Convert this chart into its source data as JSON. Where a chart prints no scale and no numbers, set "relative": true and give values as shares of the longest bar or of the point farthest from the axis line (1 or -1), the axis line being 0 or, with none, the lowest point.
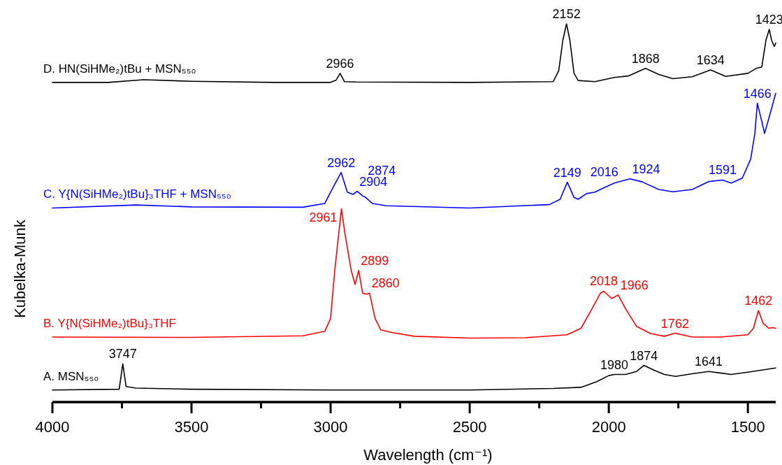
{
  "chart_data": {
    "type": "line",
    "relative": true,
    "ylabel": "Kubelka-Munk",
    "xlabel": "Wavelength (cm⁻¹)",
    "xlim": [
      4000,
      1400
    ],
    "xticks": [
      4000,
      {
        "value": 3750,
        "label": null
      },
      3500,
      {
        "value": 3250,
        "label": null
      },
      3000,
      {
        "value": 2750,
        "label": null
      },
      2500,
      {
        "value": 2250,
        "label": null
      },
      2000,
      {
        "value": 1750,
        "label": null
      },
      1500
    ],
    "tick_labels": "x",
    "grid": false,
    "marker": "none",
    "line_style": "solid",
    "series": [
      {
        "name": "A. MSN₅₅₀",
        "color": "#000000",
        "x": [
          4000,
          3760,
          3747,
          3735,
          3700,
          3500,
          3000,
          2500,
          2200,
          2100,
          2043,
          2000,
          1980,
          1940,
          1900,
          1874,
          1837,
          1800,
          1760,
          1700,
          1641,
          1600,
          1560,
          1500,
          1400
        ],
        "values": [
          0.032,
          0.034,
          0.101,
          0.041,
          0.037,
          0.034,
          0.032,
          0.032,
          0.036,
          0.039,
          0.054,
          0.07,
          0.073,
          0.073,
          0.081,
          0.097,
          0.084,
          0.073,
          0.068,
          0.075,
          0.081,
          0.077,
          0.073,
          0.079,
          0.09
        ]
      },
      {
        "name": "B. Y{N(SiHMe₂)tBu}₃THF",
        "color": "#ff0000",
        "x": [
          4000,
          3500,
          3100,
          3021,
          3000,
          2985,
          2961,
          2949,
          2926,
          2912,
          2899,
          2885,
          2870,
          2860,
          2840,
          2820,
          2780,
          2700,
          2500,
          2300,
          2150,
          2100,
          2060,
          2030,
          2018,
          1990,
          1966,
          1940,
          1900,
          1850,
          1800,
          1762,
          1700,
          1600,
          1500,
          1480,
          1462,
          1445,
          1425,
          1410,
          1400
        ],
        "values": [
          0.172,
          0.171,
          0.175,
          0.187,
          0.221,
          0.348,
          0.511,
          0.448,
          0.348,
          0.311,
          0.348,
          0.288,
          0.285,
          0.288,
          0.221,
          0.191,
          0.184,
          0.174,
          0.169,
          0.17,
          0.178,
          0.195,
          0.247,
          0.288,
          0.293,
          0.274,
          0.283,
          0.247,
          0.2,
          0.181,
          0.174,
          0.182,
          0.172,
          0.172,
          0.178,
          0.195,
          0.242,
          0.208,
          0.195,
          0.197,
          0.195
        ]
      },
      {
        "name": "C. Y{N(SiHMe₂)tBu}₃THF + MSN₅₅₀",
        "color": "#0000ff",
        "x": [
          4000,
          3700,
          3500,
          3100,
          3021,
          2990,
          2962,
          2940,
          2920,
          2904,
          2885,
          2874,
          2850,
          2800,
          2500,
          2214,
          2175,
          2149,
          2125,
          2110,
          2080,
          2050,
          2016,
          1980,
          1924,
          1880,
          1820,
          1770,
          1700,
          1640,
          1591,
          1560,
          1520,
          1490,
          1475,
          1466,
          1450,
          1440,
          1425,
          1400
        ],
        "values": [
          0.513,
          0.521,
          0.516,
          0.515,
          0.525,
          0.569,
          0.607,
          0.555,
          0.549,
          0.557,
          0.545,
          0.541,
          0.525,
          0.519,
          0.513,
          0.522,
          0.536,
          0.581,
          0.541,
          0.536,
          0.551,
          0.555,
          0.567,
          0.579,
          0.59,
          0.582,
          0.562,
          0.556,
          0.562,
          0.583,
          0.587,
          0.579,
          0.592,
          0.642,
          0.709,
          0.79,
          0.742,
          0.71,
          0.749,
          0.816
        ]
      },
      {
        "name": "D. HN(SiHMe₂)tBu + MSN₅₅₀",
        "color": "#000000",
        "x": [
          4000,
          3800,
          3673,
          3500,
          3200,
          3000,
          2980,
          2966,
          2950,
          2910,
          2500,
          2200,
          2180,
          2165,
          2152,
          2140,
          2125,
          2110,
          2050,
          1980,
          1930,
          1868,
          1820,
          1770,
          1700,
          1634,
          1580,
          1500,
          1470,
          1450,
          1435,
          1423,
          1415,
          1405,
          1400
        ],
        "values": [
          0.845,
          0.845,
          0.852,
          0.848,
          0.845,
          0.845,
          0.851,
          0.869,
          0.847,
          0.846,
          0.845,
          0.847,
          0.876,
          0.957,
          1.0,
          0.957,
          0.869,
          0.85,
          0.847,
          0.858,
          0.862,
          0.882,
          0.866,
          0.855,
          0.86,
          0.878,
          0.861,
          0.869,
          0.882,
          0.886,
          0.957,
          0.985,
          0.957,
          0.94,
          0.949
        ]
      }
    ],
    "annotations": [
      {
        "text": "3747",
        "x": 3747,
        "y": 0.101
      },
      {
        "text": "1980",
        "x": 1980,
        "y": 0.073
      },
      {
        "text": "1874",
        "x": 1874,
        "y": 0.097
      },
      {
        "text": "1641",
        "x": 1641,
        "y": 0.081
      },
      {
        "text": "2961",
        "x": 2961,
        "y": 0.511
      },
      {
        "text": "2899",
        "x": 2899,
        "y": 0.348
      },
      {
        "text": "2860",
        "x": 2860,
        "y": 0.288
      },
      {
        "text": "2018",
        "x": 2018,
        "y": 0.293
      },
      {
        "text": "1966",
        "x": 1966,
        "y": 0.283
      },
      {
        "text": "1762",
        "x": 1762,
        "y": 0.182
      },
      {
        "text": "1462",
        "x": 1462,
        "y": 0.242
      },
      {
        "text": "2962",
        "x": 2962,
        "y": 0.607
      },
      {
        "text": "2904",
        "x": 2904,
        "y": 0.557
      },
      {
        "text": "2874",
        "x": 2874,
        "y": 0.541
      },
      {
        "text": "2149",
        "x": 2149,
        "y": 0.581
      },
      {
        "text": "2016",
        "x": 2016,
        "y": 0.567
      },
      {
        "text": "1924",
        "x": 1924,
        "y": 0.59
      },
      {
        "text": "1591",
        "x": 1591,
        "y": 0.587
      },
      {
        "text": "1466",
        "x": 1466,
        "y": 0.79
      },
      {
        "text": "2966",
        "x": 2966,
        "y": 0.869
      },
      {
        "text": "2152",
        "x": 2152,
        "y": 1.0
      },
      {
        "text": "1868",
        "x": 1868,
        "y": 0.882
      },
      {
        "text": "1634",
        "x": 1634,
        "y": 0.878
      },
      {
        "text": "1423",
        "x": 1423,
        "y": 0.985
      }
    ]
  }
}
